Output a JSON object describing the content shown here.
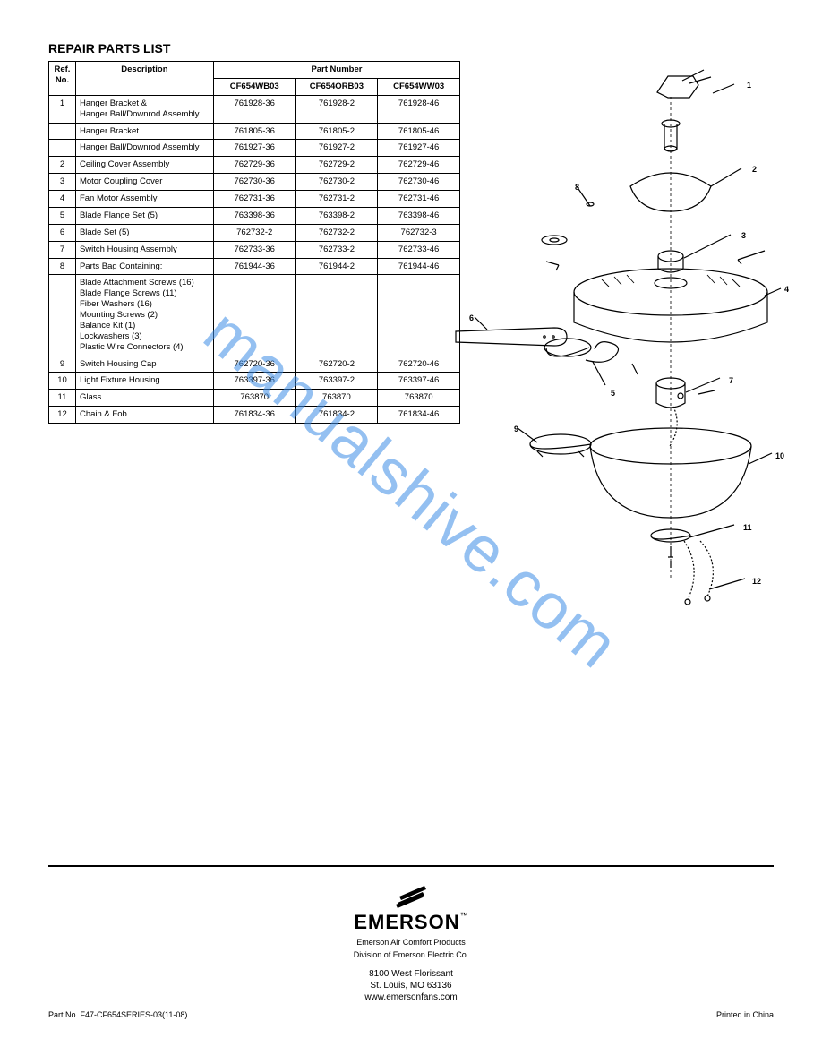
{
  "title": "REPAIR PARTS LIST",
  "table": {
    "header": {
      "ref": "Ref. No.",
      "desc": "Description",
      "partHead": "Part Number",
      "models": [
        "CF654WB03",
        "CF654ORB03",
        "CF654WW03"
      ]
    },
    "rows": [
      {
        "ref": "1",
        "desc": "Hanger Bracket &\nHanger Ball/Downrod Assembly",
        "parts": [
          "761928-36",
          "761928-2",
          "761928-46"
        ]
      },
      {
        "ref": "",
        "desc": "Hanger Bracket",
        "parts": [
          "761805-36",
          "761805-2",
          "761805-46"
        ]
      },
      {
        "ref": "",
        "desc": "Hanger Ball/Downrod Assembly",
        "parts": [
          "761927-36",
          "761927-2",
          "761927-46"
        ]
      },
      {
        "ref": "2",
        "desc": "Ceiling Cover Assembly",
        "parts": [
          "762729-36",
          "762729-2",
          "762729-46"
        ]
      },
      {
        "ref": "3",
        "desc": "Motor Coupling Cover",
        "parts": [
          "762730-36",
          "762730-2",
          "762730-46"
        ]
      },
      {
        "ref": "4",
        "desc": "Fan Motor Assembly",
        "parts": [
          "762731-36",
          "762731-2",
          "762731-46"
        ]
      },
      {
        "ref": "5",
        "desc": "Blade Flange Set (5)",
        "parts": [
          "763398-36",
          "763398-2",
          "763398-46"
        ]
      },
      {
        "ref": "6",
        "desc": "Blade Set (5)",
        "parts": [
          "762732-2",
          "762732-2",
          "762732-3"
        ]
      },
      {
        "ref": "7",
        "desc": "Switch Housing Assembly",
        "parts": [
          "762733-36",
          "762733-2",
          "762733-46"
        ]
      },
      {
        "ref": "8",
        "desc": "Parts Bag Containing:",
        "parts": [
          "761944-36",
          "761944-2",
          "761944-46"
        ]
      },
      {
        "ref": "",
        "desc": "Blade Attachment Screws (16)\nBlade Flange Screws (11)\nFiber Washers (16)\nMounting Screws (2)\nBalance Kit (1)\nLockwashers (3)\nPlastic Wire Connectors (4)",
        "parts": [
          "",
          "",
          ""
        ]
      },
      {
        "ref": "9",
        "desc": "Switch Housing Cap",
        "parts": [
          "762720-36",
          "762720-2",
          "762720-46"
        ]
      },
      {
        "ref": "10",
        "desc": "Light Fixture Housing",
        "parts": [
          "763397-36",
          "763397-2",
          "763397-46"
        ]
      },
      {
        "ref": "11",
        "desc": "Glass",
        "parts": [
          "763870",
          "763870",
          "763870"
        ]
      },
      {
        "ref": "12",
        "desc": "Chain & Fob",
        "parts": [
          "761834-36",
          "761834-2",
          "761834-46"
        ]
      }
    ]
  },
  "diagram": {
    "callouts": [
      "1",
      "2",
      "3",
      "4",
      "5",
      "6",
      "7",
      "8",
      "9",
      "10",
      "11",
      "12"
    ],
    "stroke": "#000000",
    "bg": "#ffffff"
  },
  "watermark": "manualshive.com",
  "footer": {
    "brand": "EMERSON",
    "tm": "™",
    "division": "Emerson Air Comfort Products",
    "divisionSub": "Division of Emerson Electric Co.",
    "address": "8100 West Florissant\nSt. Louis, MO 63136\nwww.emersonfans.com",
    "left": "Part No. F47-CF654SERIES-03(11-08)",
    "right": "Printed in China"
  }
}
